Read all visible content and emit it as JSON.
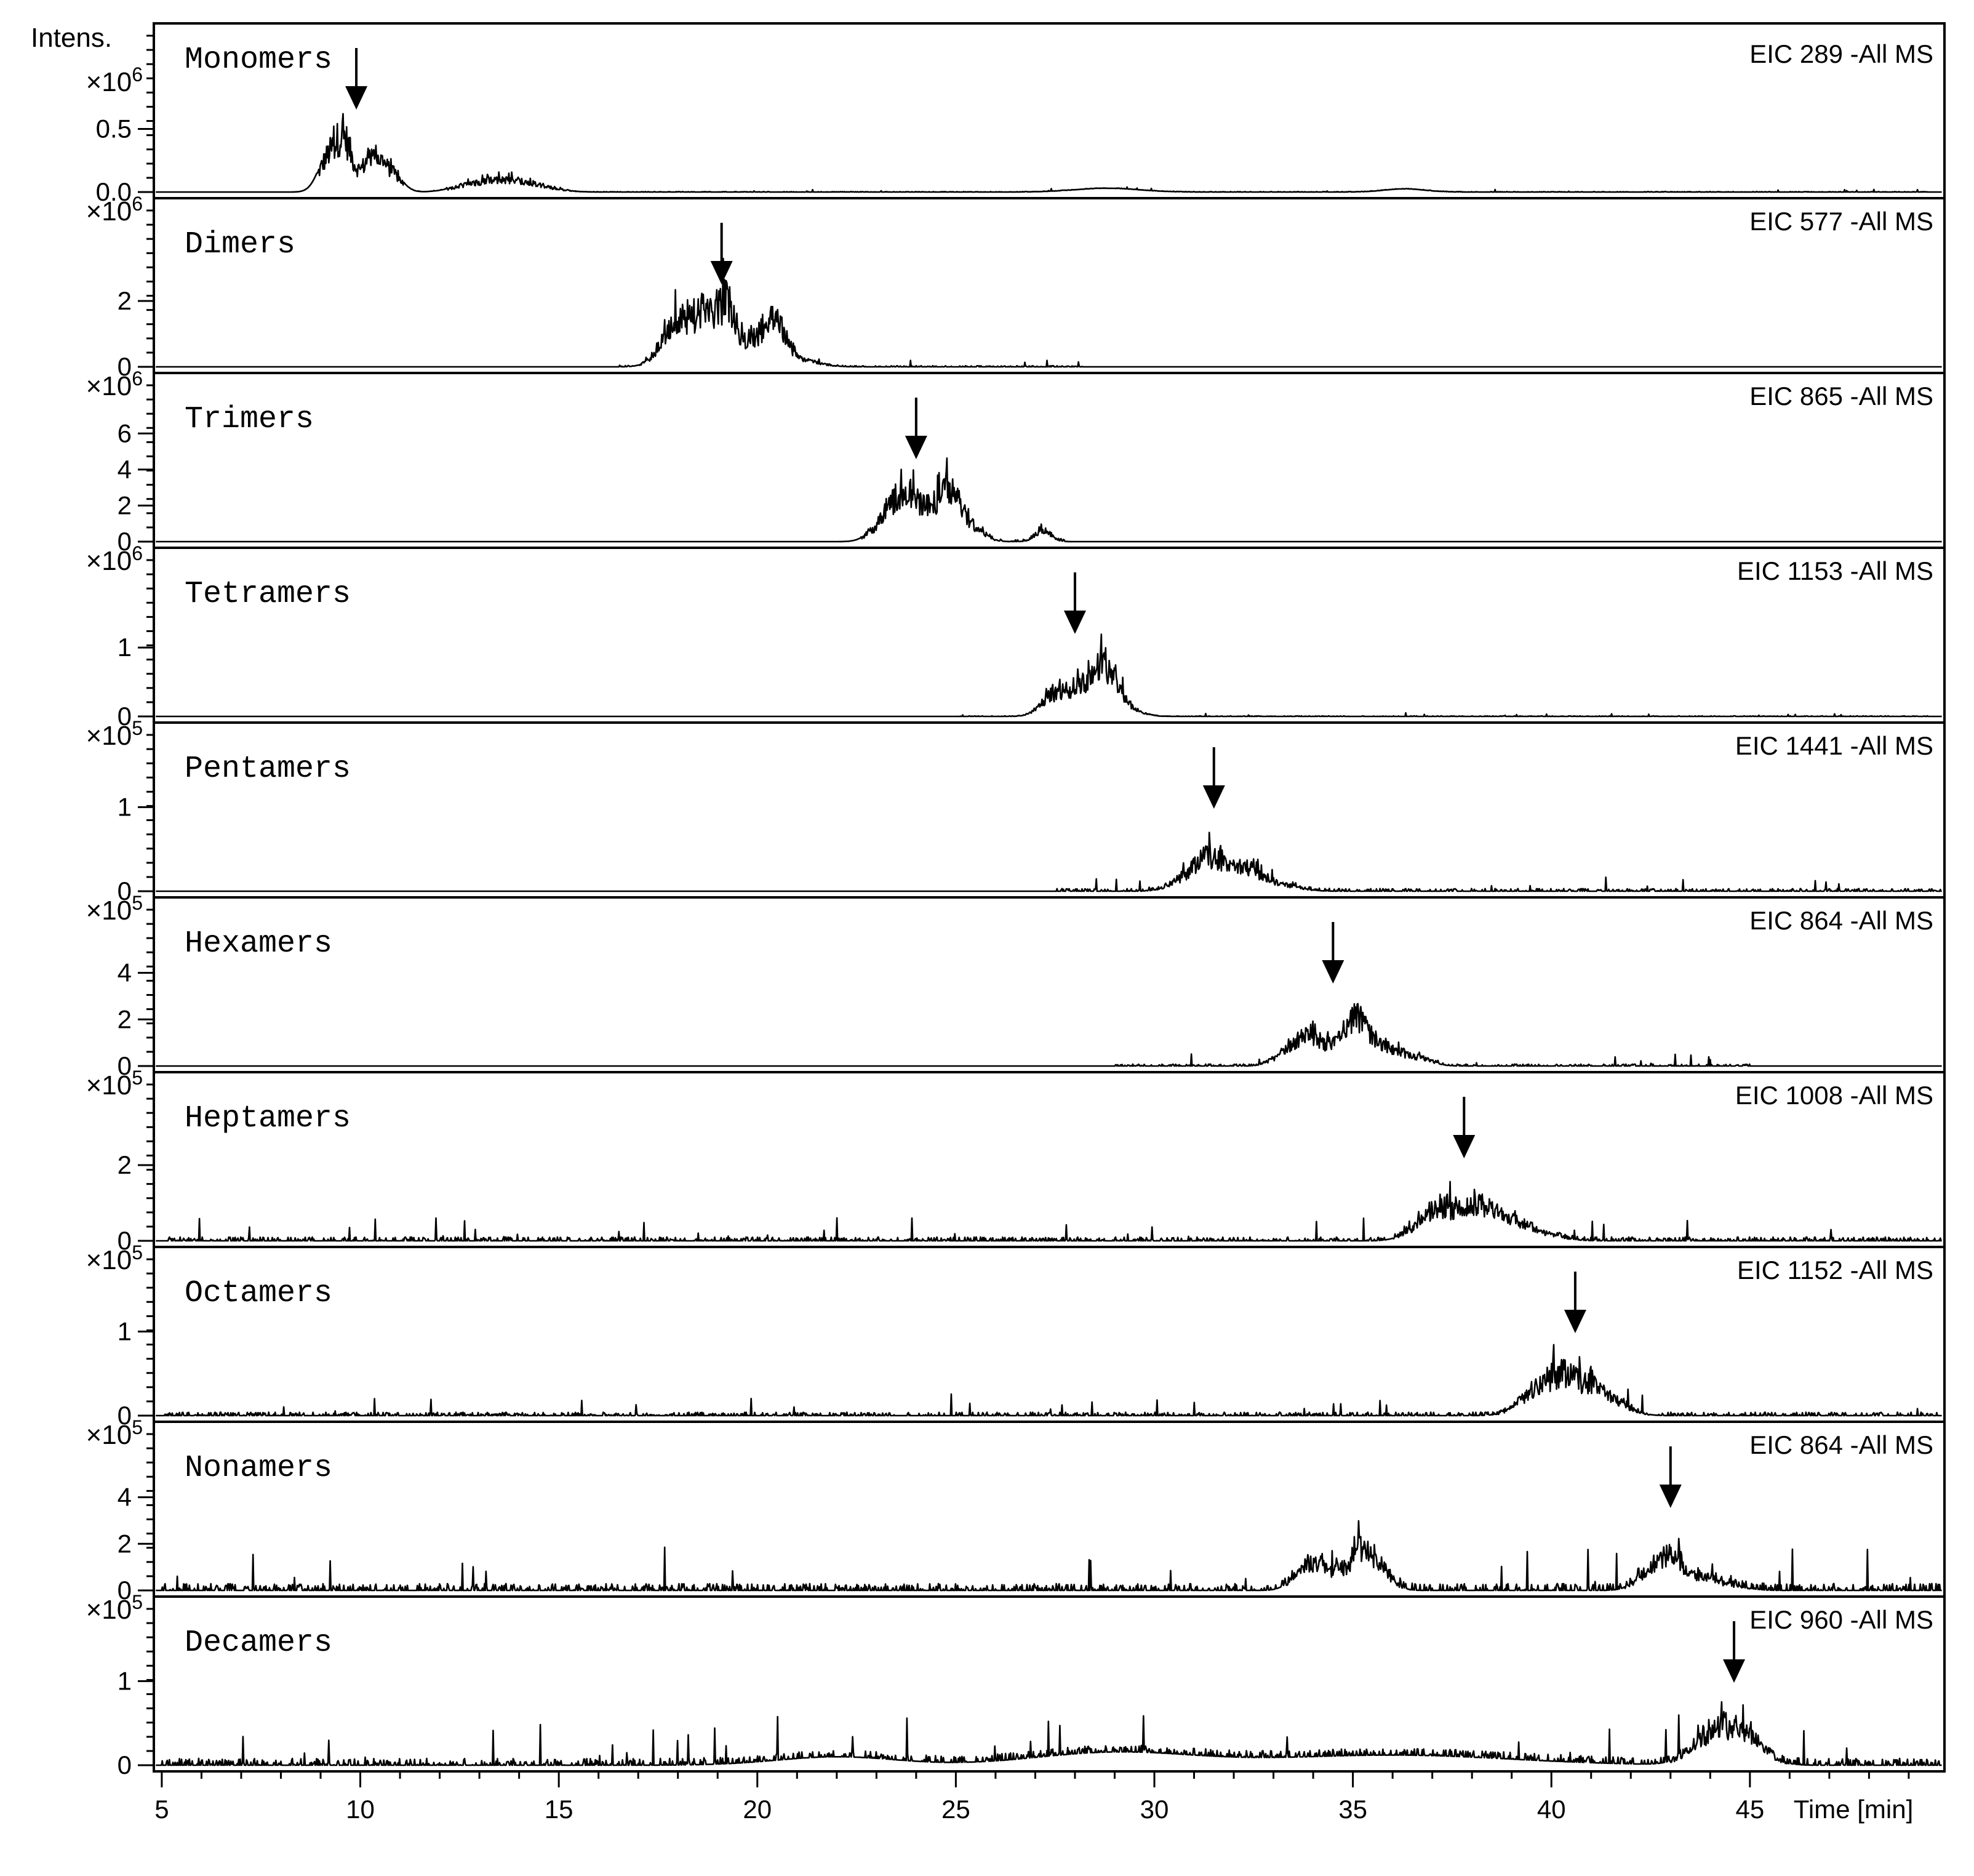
{
  "chart_data": {
    "type": "line",
    "title": "",
    "y_axis_label": "Intens.",
    "xlabel": "Time [min]",
    "xlim": [
      4.8,
      49.9
    ],
    "x_ticks": [
      5,
      10,
      15,
      20,
      25,
      30,
      35,
      40,
      45
    ],
    "series_color": "#000000",
    "panels": [
      {
        "name": "Monomers",
        "eic": "EIC 289 -All MS",
        "exponent": "×10",
        "exponent_power": "6",
        "ylim": [
          0,
          1.2
        ],
        "y_ticks": [
          {
            "v": 0,
            "t": "0.0"
          },
          {
            "v": 0.5,
            "t": "0.5"
          }
        ],
        "arrow_at": 9.9,
        "noise_level": 0.012,
        "noise_range": [
          11,
          49.5
        ],
        "peaks": [
          [
            9.2,
            0.3,
            0.25
          ],
          [
            9.6,
            0.42,
            0.2
          ],
          [
            10.3,
            0.32,
            0.25
          ],
          [
            10.8,
            0.15,
            0.25
          ],
          [
            12.9,
            0.07,
            0.5
          ],
          [
            14.0,
            0.1,
            0.6
          ],
          [
            28.8,
            0.03,
            0.8
          ],
          [
            36.3,
            0.025,
            0.5
          ]
        ],
        "ranges": [
          [
            8.9,
            11.1
          ],
          [
            12.2,
            15.6
          ]
        ]
      },
      {
        "name": "Dimers",
        "eic": "EIC 577 -All MS",
        "exponent": "×10",
        "exponent_power": "6",
        "ylim": [
          0,
          4.6
        ],
        "y_ticks": [
          {
            "v": 0,
            "t": "0"
          },
          {
            "v": 2,
            "t": "2"
          }
        ],
        "arrow_at": 19.1,
        "noise_level": 0.03,
        "noise_range": [
          16.5,
          28.2
        ],
        "peaks": [
          [
            17.6,
            0.4,
            0.3
          ],
          [
            18.0,
            1.3,
            0.3
          ],
          [
            18.6,
            1.6,
            0.3
          ],
          [
            19.2,
            1.9,
            0.25
          ],
          [
            19.7,
            0.5,
            0.35
          ],
          [
            20.4,
            1.7,
            0.3
          ],
          [
            21.2,
            0.2,
            0.4
          ]
        ],
        "ranges": [
          [
            16.9,
            22.0
          ]
        ]
      },
      {
        "name": "Trimers",
        "eic": "EIC 865 -All MS",
        "exponent": "×10",
        "exponent_power": "6",
        "ylim": [
          0,
          8.4
        ],
        "y_ticks": [
          {
            "v": 0,
            "t": "0"
          },
          {
            "v": 2,
            "t": "2"
          },
          {
            "v": 4,
            "t": "4"
          },
          {
            "v": 6,
            "t": "6"
          }
        ],
        "arrow_at": 24.0,
        "noise_level": 0.05,
        "noise_range": [
          22.5,
          27.8
        ],
        "peaks": [
          [
            23.1,
            0.8,
            0.3
          ],
          [
            23.6,
            2.4,
            0.3
          ],
          [
            24.1,
            1.6,
            0.35
          ],
          [
            24.8,
            3.1,
            0.3
          ],
          [
            25.4,
            0.8,
            0.3
          ],
          [
            27.2,
            0.7,
            0.2
          ]
        ],
        "ranges": [
          [
            22.6,
            27.9
          ]
        ]
      },
      {
        "name": "Tetramers",
        "eic": "EIC 1153 -All MS",
        "exponent": "×10",
        "exponent_power": "6",
        "ylim": [
          0,
          2.2
        ],
        "y_ticks": [
          {
            "v": 0,
            "t": "0"
          },
          {
            "v": 1,
            "t": "1"
          }
        ],
        "arrow_at": 28.0,
        "noise_level": 0.015,
        "noise_range": [
          25,
          49.5
        ],
        "peaks": [
          [
            27.4,
            0.3,
            0.3
          ],
          [
            28.0,
            0.4,
            0.3
          ],
          [
            28.5,
            0.5,
            0.25
          ],
          [
            28.9,
            0.65,
            0.25
          ],
          [
            29.4,
            0.1,
            0.3
          ]
        ],
        "ranges": [
          [
            26.3,
            30.0
          ]
        ]
      },
      {
        "name": "Pentamers",
        "eic": "EIC 1441 -All MS",
        "exponent": "×10",
        "exponent_power": "5",
        "ylim": [
          0,
          1.8
        ],
        "y_ticks": [
          {
            "v": 0,
            "t": "0"
          },
          {
            "v": 1,
            "t": "1"
          }
        ],
        "arrow_at": 31.5,
        "noise_level": 0.07,
        "noise_range": [
          27.5,
          49.8
        ],
        "peaks": [
          [
            30.9,
            0.2,
            0.4
          ],
          [
            31.4,
            0.35,
            0.3
          ],
          [
            32.2,
            0.3,
            0.4
          ],
          [
            33.0,
            0.1,
            0.5
          ]
        ],
        "ranges": [
          [
            30.0,
            34.0
          ]
        ]
      },
      {
        "name": "Hexamers",
        "eic": "EIC 864 -All MS",
        "exponent": "×10",
        "exponent_power": "5",
        "ylim": [
          0,
          6.5
        ],
        "y_ticks": [
          {
            "v": 0,
            "t": "0"
          },
          {
            "v": 2,
            "t": "2"
          },
          {
            "v": 4,
            "t": "4"
          }
        ],
        "arrow_at": 34.5,
        "noise_level": 0.05,
        "noise_range": [
          29,
          45
        ],
        "peaks": [
          [
            33.3,
            0.6,
            0.3
          ],
          [
            33.9,
            1.3,
            0.3
          ],
          [
            34.5,
            0.7,
            0.3
          ],
          [
            35.1,
            2.2,
            0.3
          ],
          [
            35.8,
            0.9,
            0.35
          ],
          [
            36.6,
            0.4,
            0.35
          ]
        ],
        "ranges": [
          [
            32.8,
            37.4
          ]
        ]
      },
      {
        "name": "Heptamers",
        "eic": "EIC 1008 -All MS",
        "exponent": "×10",
        "exponent_power": "5",
        "ylim": [
          0,
          4.0
        ],
        "y_ticks": [
          {
            "v": 0,
            "t": "0"
          },
          {
            "v": 2,
            "t": "2"
          }
        ],
        "arrow_at": 37.8,
        "noise_level": 0.1,
        "noise_range": [
          5,
          49.8
        ],
        "peaks": [
          [
            36.8,
            0.5,
            0.4
          ],
          [
            37.4,
            0.8,
            0.35
          ],
          [
            38.2,
            0.9,
            0.35
          ],
          [
            38.9,
            0.5,
            0.4
          ],
          [
            39.6,
            0.25,
            0.5
          ]
        ],
        "ranges": [
          [
            36.0,
            40.5
          ]
        ]
      },
      {
        "name": "Octamers",
        "eic": "EIC 1152 -All MS",
        "exponent": "×10",
        "exponent_power": "5",
        "ylim": [
          0,
          1.8
        ],
        "y_ticks": [
          {
            "v": 0,
            "t": "0"
          },
          {
            "v": 1,
            "t": "1"
          }
        ],
        "arrow_at": 40.6,
        "noise_level": 0.09,
        "noise_range": [
          5,
          49.8
        ],
        "peaks": [
          [
            39.5,
            0.25,
            0.4
          ],
          [
            40.2,
            0.45,
            0.35
          ],
          [
            40.9,
            0.35,
            0.4
          ],
          [
            41.6,
            0.15,
            0.4
          ]
        ],
        "ranges": [
          [
            38.5,
            42.5
          ]
        ]
      },
      {
        "name": "Nonamers",
        "eic": "EIC 864 -All MS",
        "exponent": "×10",
        "exponent_power": "5",
        "ylim": [
          0,
          6.5
        ],
        "y_ticks": [
          {
            "v": 0,
            "t": "0"
          },
          {
            "v": 2,
            "t": "2"
          },
          {
            "v": 4,
            "t": "4"
          }
        ],
        "arrow_at": 43.0,
        "noise_level": 0.18,
        "noise_range": [
          5,
          49.8
        ],
        "peaks": [
          [
            33.9,
            1.2,
            0.35
          ],
          [
            34.5,
            0.6,
            0.3
          ],
          [
            35.2,
            1.8,
            0.3
          ],
          [
            35.7,
            0.8,
            0.3
          ],
          [
            42.5,
            0.8,
            0.35
          ],
          [
            43.0,
            1.4,
            0.3
          ],
          [
            43.7,
            0.6,
            0.4
          ],
          [
            44.5,
            0.2,
            0.4
          ]
        ],
        "ranges": [
          [
            33.2,
            36.5
          ],
          [
            41.8,
            45.0
          ]
        ]
      },
      {
        "name": "Decamers",
        "eic": "EIC 960 -All MS",
        "exponent": "×10",
        "exponent_power": "5",
        "ylim": [
          0,
          1.8
        ],
        "y_ticks": [
          {
            "v": 0,
            "t": "0"
          },
          {
            "v": 1,
            "t": "1"
          }
        ],
        "arrow_at": 44.6,
        "noise_level": 0.18,
        "noise_range": [
          5,
          49.8
        ],
        "peaks": [
          [
            22,
            0.1,
            1.5
          ],
          [
            29,
            0.15,
            2
          ],
          [
            36,
            0.12,
            3
          ],
          [
            44.0,
            0.35,
            0.5
          ],
          [
            44.8,
            0.4,
            0.5
          ]
        ],
        "ranges": [
          [
            43.0,
            46.0
          ]
        ]
      }
    ]
  }
}
